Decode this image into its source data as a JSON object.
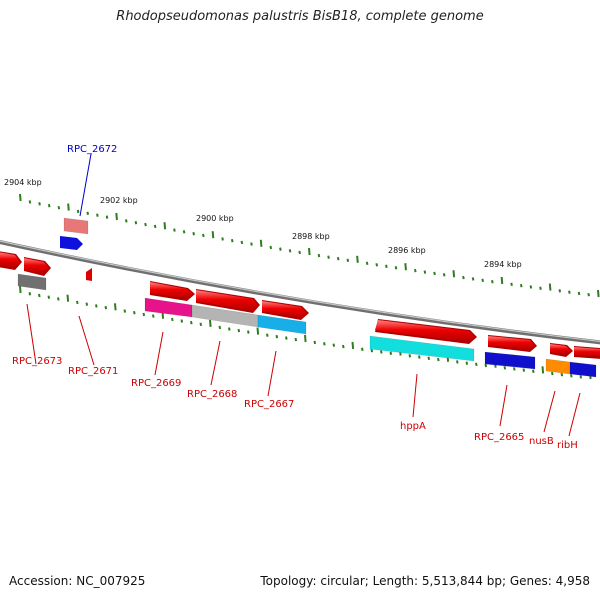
{
  "title": "Rhodopseudomonas palustris BisB18, complete genome",
  "footer": {
    "accession": "Accession: NC_007925",
    "stats": "Topology: circular; Length: 5,513,844 bp; Genes: 4,958"
  },
  "colors": {
    "backbone": "#8a8a8a",
    "tick": "#2e7d1f",
    "label_red": "#cc0000",
    "label_blue": "#0000cc"
  },
  "ruler_labels": [
    "2904 kbp",
    "2902 kbp",
    "2900 kbp",
    "2898 kbp",
    "2896 kbp",
    "2894 kbp"
  ],
  "genes": [
    {
      "name": "RPC_2673",
      "color": "#cc0000",
      "box": "#707070"
    },
    {
      "name": "RPC_2672",
      "color": "#0000cc",
      "box": "#e87878"
    },
    {
      "name": "RPC_2671",
      "color": "#cc0000",
      "box": "#e00000"
    },
    {
      "name": "RPC_2669",
      "color": "#cc0000",
      "box": "#e8128a"
    },
    {
      "name": "RPC_2668",
      "color": "#cc0000",
      "box": "#b4b4b4"
    },
    {
      "name": "RPC_2667",
      "color": "#cc0000",
      "box": "#18aee8"
    },
    {
      "name": "hppA",
      "color": "#cc0000",
      "box": "#12dede"
    },
    {
      "name": "RPC_2665",
      "color": "#cc0000",
      "box": "#1010cc"
    },
    {
      "name": "nusB",
      "color": "#cc0000",
      "box": "#ff8c00"
    },
    {
      "name": "ribH",
      "color": "#cc0000",
      "box": "#1010cc"
    }
  ]
}
